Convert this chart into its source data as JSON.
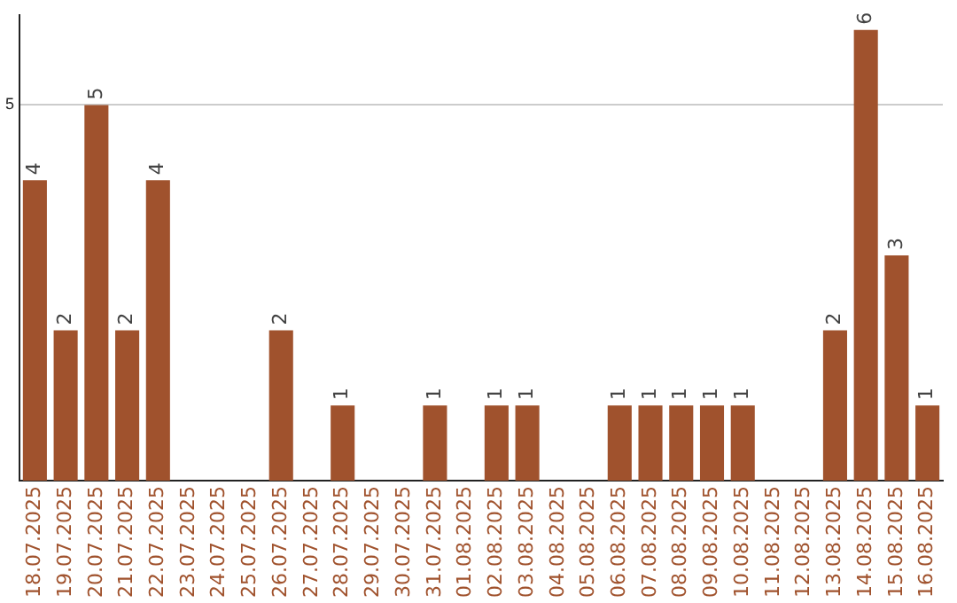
{
  "chart_data": {
    "type": "bar",
    "categories": [
      "18.07.2025",
      "19.07.2025",
      "20.07.2025",
      "21.07.2025",
      "22.07.2025",
      "23.07.2025",
      "24.07.2025",
      "25.07.2025",
      "26.07.2025",
      "27.07.2025",
      "28.07.2025",
      "29.07.2025",
      "30.07.2025",
      "31.07.2025",
      "01.08.2025",
      "02.08.2025",
      "03.08.2025",
      "04.08.2025",
      "05.08.2025",
      "06.08.2025",
      "07.08.2025",
      "08.08.2025",
      "09.08.2025",
      "10.08.2025",
      "11.08.2025",
      "12.08.2025",
      "13.08.2025",
      "14.08.2025",
      "15.08.2025",
      "16.08.2025"
    ],
    "values": [
      4,
      2,
      5,
      2,
      4,
      0,
      0,
      0,
      2,
      0,
      1,
      0,
      0,
      1,
      0,
      1,
      1,
      0,
      0,
      1,
      1,
      1,
      1,
      1,
      0,
      0,
      2,
      6,
      3,
      1
    ],
    "value_labels": [
      "4",
      "2",
      "5",
      "2",
      "4",
      null,
      null,
      null,
      "2",
      null,
      "1",
      null,
      null,
      "1",
      null,
      "1",
      "1",
      null,
      null,
      "1",
      "1",
      "1",
      "1",
      "1",
      null,
      null,
      "2",
      "6",
      "3",
      "1"
    ],
    "color": "#a0522d",
    "ylim": [
      0,
      6.2
    ],
    "yticks": [
      5
    ],
    "grid": "y"
  }
}
